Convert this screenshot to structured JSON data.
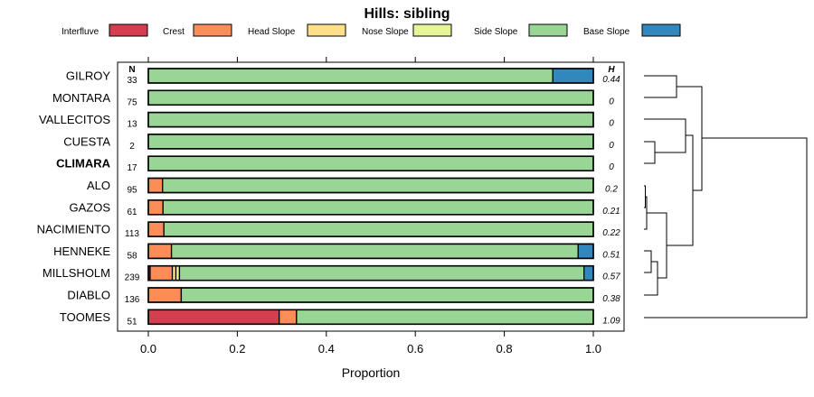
{
  "chart_data": {
    "type": "bar",
    "orientation": "horizontal",
    "stacked": true,
    "title": "Hills: sibling",
    "xlabel": "Proportion",
    "ylabel": "",
    "xlim": [
      0,
      1
    ],
    "x_ticks": [
      0,
      0.2,
      0.4,
      0.6,
      0.8,
      1
    ],
    "x_tick_labels": [
      "0.0",
      "0.2",
      "0.4",
      "0.6",
      "0.8",
      "1.0"
    ],
    "n_header": "N",
    "h_header": "H",
    "legend_placement": "top",
    "legend": [
      {
        "name": "Interfluve",
        "color": "#d53e4f"
      },
      {
        "name": "Crest",
        "color": "#fc8d59"
      },
      {
        "name": "Head Slope",
        "color": "#fee08b"
      },
      {
        "name": "Nose Slope",
        "color": "#e6f598"
      },
      {
        "name": "Side Slope",
        "color": "#99d594"
      },
      {
        "name": "Base Slope",
        "color": "#3288bd"
      }
    ],
    "highlighted_category": "CLIMARA",
    "categories": [
      "GILROY",
      "MONTARA",
      "VALLECITOS",
      "CUESTA",
      "CLIMARA",
      "ALO",
      "GAZOS",
      "NACIMIENTO",
      "HENNEKE",
      "MILLSHOLM",
      "DIABLO",
      "TOOMES"
    ],
    "n": [
      "33",
      "75",
      "13",
      "2",
      "17",
      "95",
      "61",
      "113",
      "58",
      "239",
      "136",
      "51"
    ],
    "h": [
      "0.44",
      "0",
      "0",
      "0",
      "0",
      "0.2",
      "0.21",
      "0.22",
      "0.51",
      "0.57",
      "0.38",
      "1.09"
    ],
    "series": [
      {
        "name": "Interfluve",
        "values": [
          0,
          0,
          0,
          0,
          0,
          0,
          0,
          0,
          0,
          0.004,
          0,
          0.294
        ]
      },
      {
        "name": "Crest",
        "values": [
          0,
          0,
          0,
          0,
          0,
          0.032,
          0.033,
          0.035,
          0.052,
          0.05,
          0.074,
          0.039
        ]
      },
      {
        "name": "Head Slope",
        "values": [
          0,
          0,
          0,
          0,
          0,
          0,
          0,
          0,
          0,
          0.008,
          0,
          0
        ]
      },
      {
        "name": "Nose Slope",
        "values": [
          0,
          0,
          0,
          0,
          0,
          0,
          0,
          0,
          0,
          0.008,
          0,
          0
        ]
      },
      {
        "name": "Side Slope",
        "values": [
          0.909,
          1,
          1,
          1,
          1,
          0.968,
          0.967,
          0.965,
          0.914,
          0.909,
          0.926,
          0.667
        ]
      },
      {
        "name": "Base Slope",
        "values": [
          0.091,
          0,
          0,
          0,
          0,
          0,
          0,
          0,
          0.034,
          0.021,
          0,
          0
        ]
      }
    ]
  }
}
